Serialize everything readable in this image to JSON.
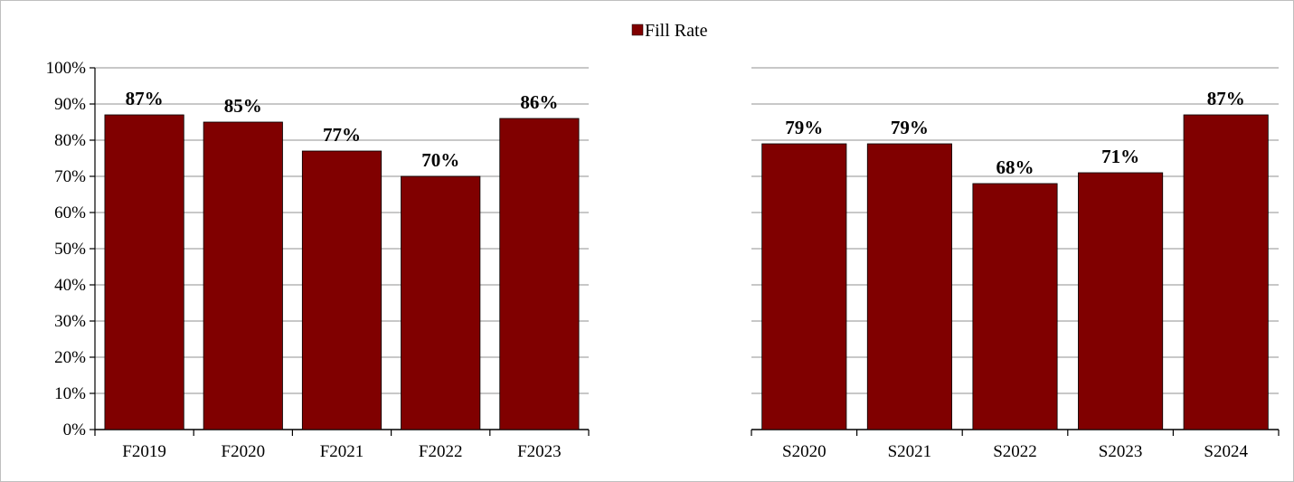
{
  "chart_data": [
    {
      "type": "bar",
      "categories": [
        "F2019",
        "F2020",
        "F2021",
        "F2022",
        "F2023"
      ],
      "series": [
        {
          "name": "Fill Rate",
          "values": [
            0.87,
            0.85,
            0.77,
            0.7,
            0.86
          ]
        }
      ],
      "data_labels": [
        "87%",
        "85%",
        "77%",
        "70%",
        "86%"
      ],
      "yticks": [
        "0%",
        "10%",
        "20%",
        "30%",
        "40%",
        "50%",
        "60%",
        "70%",
        "80%",
        "90%",
        "100%"
      ],
      "ylim": [
        0,
        1
      ],
      "y_axis_visible": true,
      "grid": true,
      "legend": "top-center"
    },
    {
      "type": "bar",
      "categories": [
        "S2020",
        "S2021",
        "S2022",
        "S2023",
        "S2024"
      ],
      "series": [
        {
          "name": "Fill Rate",
          "values": [
            0.79,
            0.79,
            0.68,
            0.71,
            0.87
          ]
        }
      ],
      "data_labels": [
        "79%",
        "79%",
        "68%",
        "71%",
        "87%"
      ],
      "ylim": [
        0,
        1
      ],
      "y_axis_visible": false,
      "grid": true
    }
  ],
  "legend": {
    "label": "Fill Rate",
    "color": "#800000"
  },
  "colors": {
    "bar": "#800000",
    "grid": "#a6a6a6",
    "axis": "#000000"
  }
}
